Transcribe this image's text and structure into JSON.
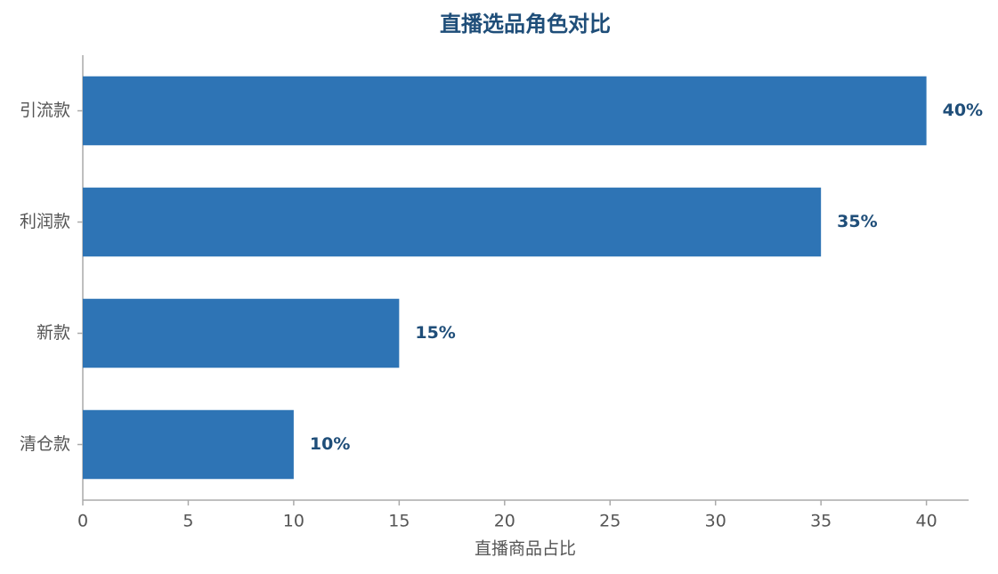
{
  "chart_data": {
    "type": "bar",
    "orientation": "horizontal",
    "title": "直播选品角色对比",
    "x_label": "直播商品占比",
    "categories": [
      "引流款",
      "利润款",
      "新款",
      "清仓款"
    ],
    "values": [
      40,
      35,
      15,
      10
    ],
    "value_labels": [
      "40%",
      "35%",
      "15%",
      "10%"
    ],
    "color": "#2e74b5",
    "xlim": [
      0,
      42
    ],
    "xticks": [
      0,
      5,
      10,
      15,
      20,
      25,
      30,
      35,
      40
    ],
    "grid": false
  }
}
